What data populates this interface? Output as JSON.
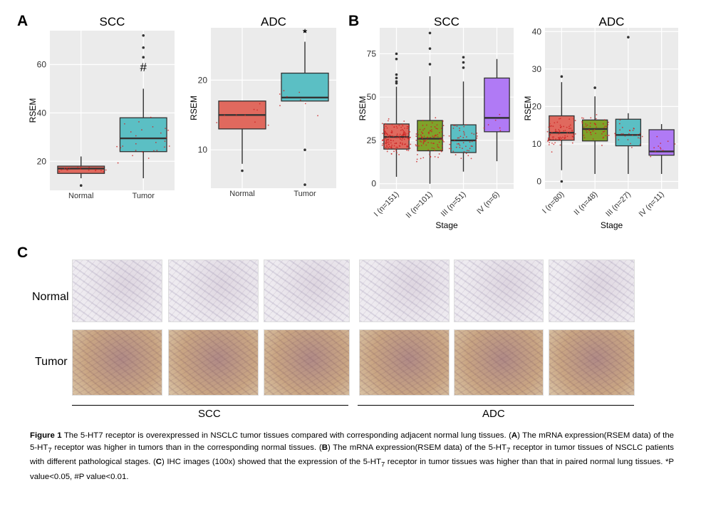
{
  "panels": {
    "a": "A",
    "b": "B",
    "c": "C"
  },
  "colors": {
    "red": "#e0695e",
    "green": "#7fa22a",
    "teal": "#5bbfc4",
    "purple": "#b07af5",
    "plot_bg": "#ebebeb",
    "point": "#cc2222"
  },
  "chart_data": [
    {
      "type": "box",
      "title": "SCC",
      "ylabel": "RSEM",
      "xlabel": "",
      "ylim": [
        8,
        74
      ],
      "yticks": [
        20,
        40,
        60
      ],
      "categories": [
        "Normal",
        "Tumor"
      ],
      "color_keys": [
        "red",
        "teal"
      ],
      "boxes": [
        {
          "q1": 15,
          "median": 17,
          "q3": 18,
          "low": 13,
          "high": 22,
          "outliers": [
            10
          ],
          "n_points": 18
        },
        {
          "q1": 24,
          "median": 29.5,
          "q3": 38,
          "low": 13,
          "high": 50,
          "outliers": [
            63,
            67,
            72
          ],
          "n_points": 26
        }
      ],
      "annotation": {
        "category": "Tumor",
        "value": 59,
        "text": "#"
      }
    },
    {
      "type": "box",
      "title": "ADC",
      "ylabel": "RSEM",
      "xlabel": "",
      "ylim": [
        4.5,
        27.5
      ],
      "yticks": [
        10,
        20
      ],
      "categories": [
        "Normal",
        "Tumor"
      ],
      "color_keys": [
        "red",
        "teal"
      ],
      "boxes": [
        {
          "q1": 13,
          "median": 15,
          "q3": 17,
          "low": 8,
          "high": 17,
          "outliers": [
            7
          ],
          "n_points": 9
        },
        {
          "q1": 17,
          "median": 17.5,
          "q3": 21,
          "low": 17,
          "high": 25.5,
          "outliers": [
            10,
            5,
            27
          ],
          "n_points": 8
        }
      ],
      "annotation": {
        "category": "Tumor",
        "value": 26.8,
        "text": "*"
      }
    },
    {
      "type": "box",
      "title": "SCC",
      "ylabel": "RSEM",
      "xlabel": "Stage",
      "ylim": [
        -3,
        90
      ],
      "yticks": [
        0,
        25,
        50,
        75
      ],
      "categories": [
        "I (n=151)",
        "II (n=101)",
        "III (n=51)",
        "IV (n=6)"
      ],
      "color_keys": [
        "red",
        "green",
        "teal",
        "purple"
      ],
      "boxes": [
        {
          "q1": 20,
          "median": 27,
          "q3": 34.5,
          "low": 4,
          "high": 56,
          "outliers": [
            58,
            59,
            61,
            63,
            72,
            75
          ],
          "n_points": 151
        },
        {
          "q1": 19,
          "median": 26,
          "q3": 36.5,
          "low": 0,
          "high": 62,
          "outliers": [
            69,
            78,
            87
          ],
          "n_points": 101
        },
        {
          "q1": 18,
          "median": 25,
          "q3": 34,
          "low": 7,
          "high": 59,
          "outliers": [
            67,
            70,
            73
          ],
          "n_points": 51
        },
        {
          "q1": 30,
          "median": 38,
          "q3": 61,
          "low": 13,
          "high": 72,
          "outliers": [],
          "n_points": 6
        }
      ]
    },
    {
      "type": "box",
      "title": "ADC",
      "ylabel": "RSEM",
      "xlabel": "Stage",
      "ylim": [
        -2,
        41
      ],
      "yticks": [
        0,
        10,
        20,
        30,
        40
      ],
      "categories": [
        "I (n=80)",
        "II (n=48)",
        "III (n=27)",
        "IV (n=11)"
      ],
      "color_keys": [
        "red",
        "green",
        "teal",
        "purple"
      ],
      "boxes": [
        {
          "q1": 11,
          "median": 13,
          "q3": 17.5,
          "low": 3,
          "high": 26.5,
          "outliers": [
            0,
            28
          ],
          "n_points": 80
        },
        {
          "q1": 10.8,
          "median": 14,
          "q3": 16.4,
          "low": 2,
          "high": 22.7,
          "outliers": [
            25
          ],
          "n_points": 48
        },
        {
          "q1": 9.5,
          "median": 12.4,
          "q3": 16.6,
          "low": 2,
          "high": 18.2,
          "outliers": [
            38.5
          ],
          "n_points": 27
        },
        {
          "q1": 7,
          "median": 8,
          "q3": 13.8,
          "low": 2,
          "high": 15.3,
          "outliers": [],
          "n_points": 11
        }
      ]
    }
  ],
  "ihc": {
    "row_labels": [
      "Normal",
      "Tumor"
    ],
    "group_labels": [
      "SCC",
      "ADC"
    ]
  },
  "caption": {
    "fig_label": "Figure 1",
    "t1": " The 5-HT7 receptor is overexpressed in NSCLC tumor tissues compared with corresponding adjacent normal lung tissues. (",
    "a": "A",
    "t2": ") The mRNA expression(RSEM data) of the 5-HT",
    "sub": "7",
    "t3": " receptor was higher in tumors than in the corresponding normal tissues. (",
    "b": "B",
    "t4": ") The mRNA expression(RSEM data) of the 5-HT",
    "t5": " receptor in tumor tissues of NSCLC patients with different pathological stages. (",
    "c": "C",
    "t6": ") IHC images (100x) showed that the expression of the 5-HT",
    "t7": " receptor in tumor tissues was higher than that in paired normal lung tissues. *P value<0.05, #P value<0.01."
  }
}
